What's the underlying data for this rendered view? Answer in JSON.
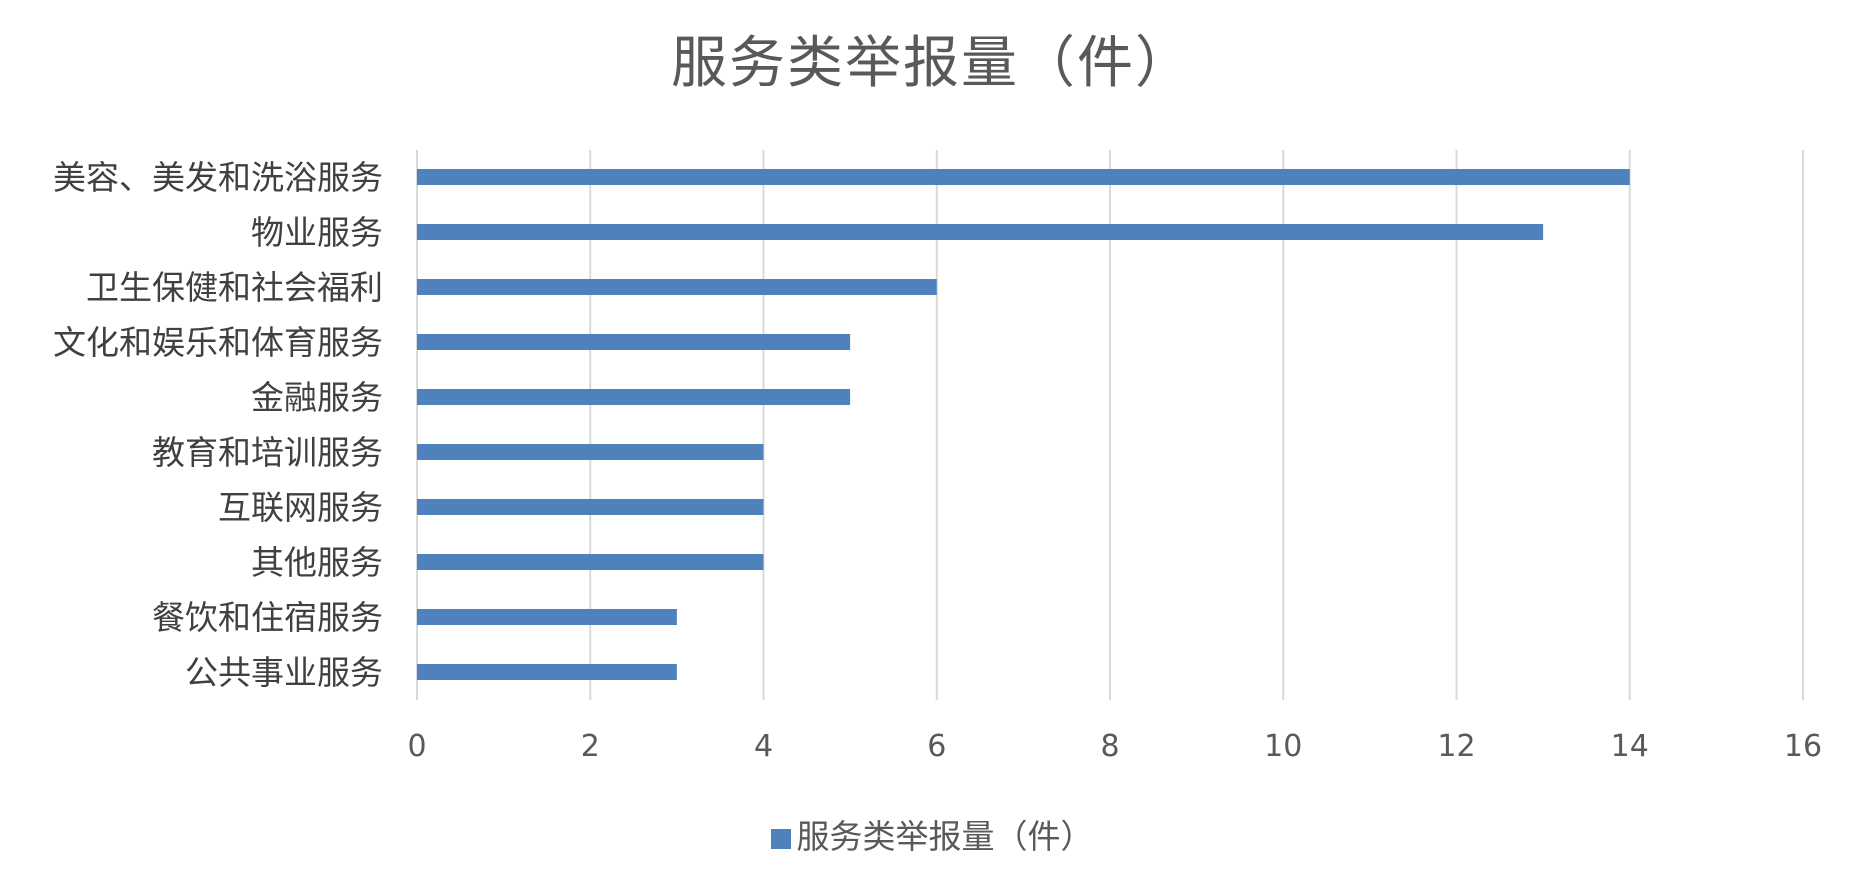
{
  "chart_data": {
    "type": "bar",
    "orientation": "horizontal",
    "title": "服务类举报量（件）",
    "categories": [
      "美容、美发和洗浴服务",
      "物业服务",
      "卫生保健和社会福利",
      "文化和娱乐和体育服务",
      "金融服务",
      "教育和培训服务",
      "互联网服务",
      "其他服务",
      "餐饮和住宿服务",
      "公共事业服务"
    ],
    "series": [
      {
        "name": "服务类举报量（件）",
        "values": [
          14,
          13,
          6,
          5,
          5,
          4,
          4,
          4,
          3,
          3
        ],
        "color": "#4f81bd"
      }
    ],
    "xlim": [
      0,
      16
    ],
    "xticks": [
      "0",
      "2",
      "4",
      "6",
      "8",
      "10",
      "12",
      "14",
      "16"
    ],
    "grid": true,
    "gridline_color": "#d9d9d9",
    "legend_position": "bottom"
  }
}
